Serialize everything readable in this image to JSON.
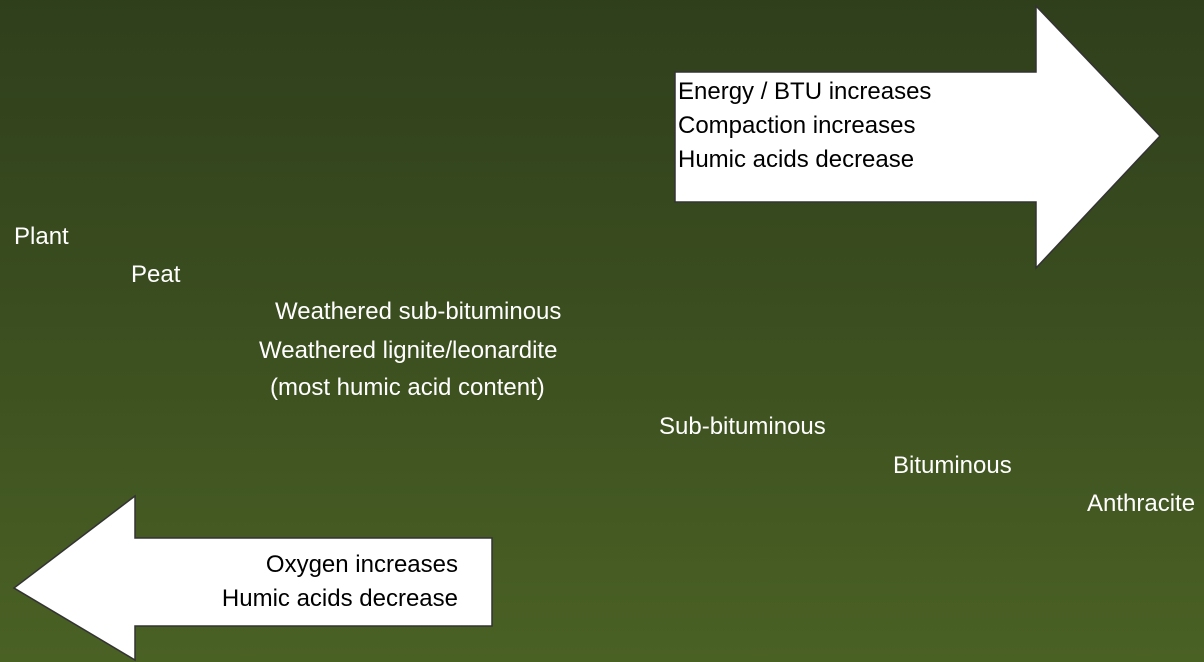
{
  "arrows": {
    "right": {
      "lines": [
        "Energy / BTU increases",
        "Compaction increases",
        "Humic acids decrease"
      ]
    },
    "left": {
      "lines": [
        "Oxygen increases",
        "Humic acids decrease"
      ]
    }
  },
  "stages": [
    "Plant",
    "Peat",
    "Weathered sub-bituminous",
    "Weathered lignite/leonardite",
    "(most humic acid content)",
    "Sub-bituminous",
    "Bituminous",
    "Anthracite"
  ]
}
